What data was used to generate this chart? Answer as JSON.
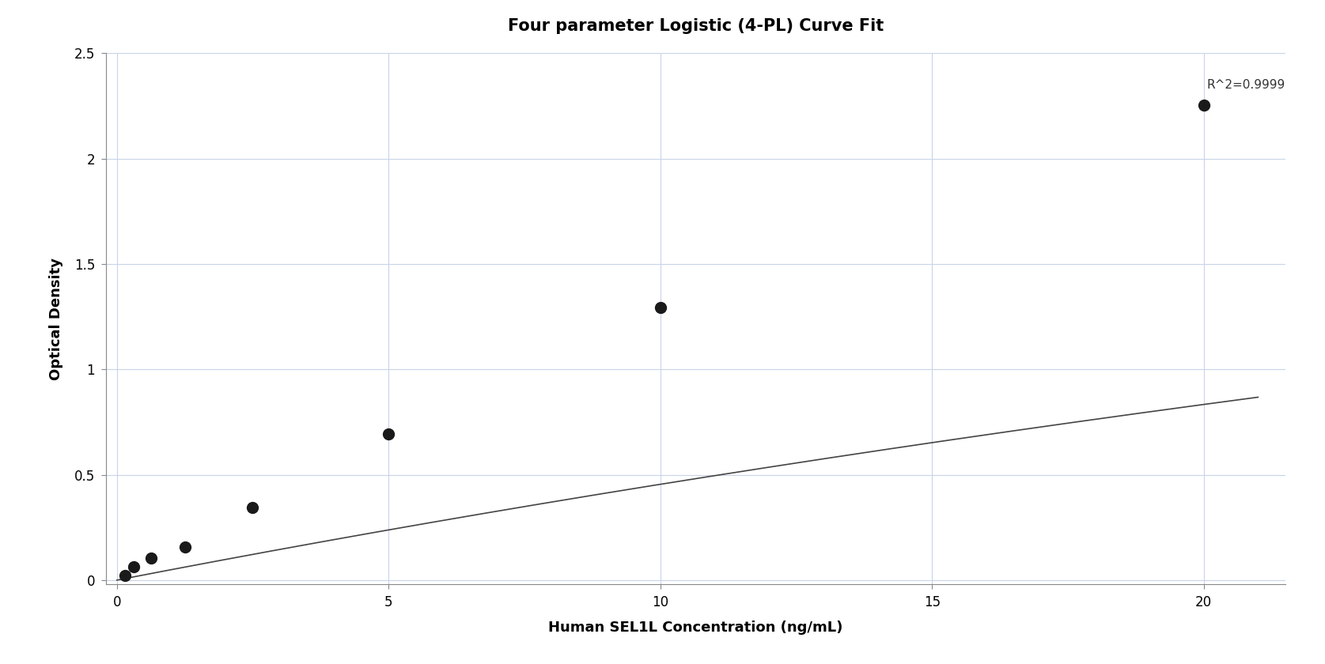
{
  "title": "Four parameter Logistic (4-PL) Curve Fit",
  "xlabel": "Human SEL1L Concentration (ng/mL)",
  "ylabel": "Optical Density",
  "r_squared": "R^2=0.9999",
  "data_x": [
    0.156,
    0.313,
    0.625,
    1.25,
    2.5,
    5.0,
    10.0,
    20.0
  ],
  "data_y": [
    0.022,
    0.062,
    0.104,
    0.158,
    0.343,
    0.695,
    1.295,
    2.255
  ],
  "xlim": [
    -0.2,
    21.5
  ],
  "ylim": [
    -0.02,
    2.5
  ],
  "xticks": [
    0,
    5,
    10,
    15,
    20
  ],
  "yticks": [
    0,
    0.5,
    1.0,
    1.5,
    2.0,
    2.5
  ],
  "background_color": "#ffffff",
  "grid_color": "#c8d4e8",
  "line_color": "#444444",
  "marker_color": "#1a1a1a",
  "title_fontsize": 15,
  "label_fontsize": 13,
  "tick_fontsize": 12,
  "annotation_fontsize": 11,
  "marker_size": 100,
  "line_width": 1.2
}
